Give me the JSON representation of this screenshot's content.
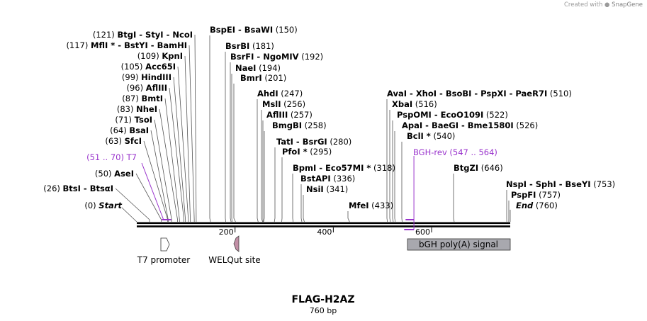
{
  "credit": {
    "prefix": "Created with",
    "brand": "SnapGene"
  },
  "title": "FLAG-H2AZ",
  "subtitle": "760 bp",
  "sequence_length": 760,
  "ticks": [
    {
      "pos": 200,
      "label": "200"
    },
    {
      "pos": 400,
      "label": "400"
    },
    {
      "pos": 600,
      "label": "600"
    }
  ],
  "start_label": {
    "pos_text": "(0)",
    "name": "Start",
    "site": 0
  },
  "end_label": {
    "pos_text": "(760)",
    "name": "End",
    "site": 760
  },
  "left_sites": [
    {
      "pos_text": "(26)",
      "names": [
        "BtsI",
        "BtsαI"
      ],
      "site": 26
    },
    {
      "pos_text": "(50)",
      "names": [
        "AseI"
      ],
      "site": 50
    },
    {
      "pos_text": "(63)",
      "names": [
        "SfcI"
      ],
      "site": 63
    },
    {
      "pos_text": "(64)",
      "names": [
        "BsaI"
      ],
      "site": 64
    },
    {
      "pos_text": "(71)",
      "names": [
        "TsoI"
      ],
      "site": 71
    },
    {
      "pos_text": "(83)",
      "names": [
        "NheI"
      ],
      "site": 83
    },
    {
      "pos_text": "(87)",
      "names": [
        "BmtI"
      ],
      "site": 87
    },
    {
      "pos_text": "(96)",
      "names": [
        "AflIII"
      ],
      "site": 96
    },
    {
      "pos_text": "(99)",
      "names": [
        "HindIII"
      ],
      "site": 99
    },
    {
      "pos_text": "(105)",
      "names": [
        "Acc65I"
      ],
      "site": 105
    },
    {
      "pos_text": "(109)",
      "names": [
        "KpnI"
      ],
      "site": 109
    },
    {
      "pos_text": "(117)",
      "names": [
        "MflI *",
        "BstYI",
        "BamHI"
      ],
      "site": 117
    },
    {
      "pos_text": "(121)",
      "names": [
        "BtgI",
        "StyI",
        "NcoI"
      ],
      "site": 121
    }
  ],
  "mid_sites": [
    {
      "names": [
        "BspEI",
        "BsaWI"
      ],
      "pos_text": "(150)",
      "site": 150
    },
    {
      "names": [
        "BsrBI"
      ],
      "pos_text": "(181)",
      "site": 181
    },
    {
      "names": [
        "BsrFI",
        "NgoMIV"
      ],
      "pos_text": "(192)",
      "site": 192
    },
    {
      "names": [
        "NaeI"
      ],
      "pos_text": "(194)",
      "site": 194
    },
    {
      "names": [
        "BmrI"
      ],
      "pos_text": "(201)",
      "site": 201
    },
    {
      "names": [
        "AhdI"
      ],
      "pos_text": "(247)",
      "site": 247
    },
    {
      "names": [
        "MslI"
      ],
      "pos_text": "(256)",
      "site": 256
    },
    {
      "names": [
        "AflIII"
      ],
      "pos_text": "(257)",
      "site": 257
    },
    {
      "names": [
        "BmgBI"
      ],
      "pos_text": "(258)",
      "site": 258
    },
    {
      "names": [
        "TatI",
        "BsrGI"
      ],
      "pos_text": "(280)",
      "site": 280
    },
    {
      "names": [
        "PfoI *"
      ],
      "pos_text": "(295)",
      "site": 295
    },
    {
      "names": [
        "BpmI",
        "Eco57MI *"
      ],
      "pos_text": "(318)",
      "site": 318
    },
    {
      "names": [
        "BstAPI"
      ],
      "pos_text": "(336)",
      "site": 336
    },
    {
      "names": [
        "NsiI"
      ],
      "pos_text": "(341)",
      "site": 341
    },
    {
      "names": [
        "MfeI"
      ],
      "pos_text": "(433)",
      "site": 433
    },
    {
      "names": [
        "AvaI",
        "XhoI",
        "BsoBI",
        "PspXI",
        "PaeR7I"
      ],
      "pos_text": "(510)",
      "site": 510
    },
    {
      "names": [
        "XbaI"
      ],
      "pos_text": "(516)",
      "site": 516
    },
    {
      "names": [
        "PspOMI",
        "EcoO109I"
      ],
      "pos_text": "(522)",
      "site": 522
    },
    {
      "names": [
        "ApaI",
        "BaeGI",
        "Bme1580I"
      ],
      "pos_text": "(526)",
      "site": 526
    },
    {
      "names": [
        "BclI *"
      ],
      "pos_text": "(540)",
      "site": 540
    },
    {
      "names": [
        "BtgZI"
      ],
      "pos_text": "(646)",
      "site": 646
    },
    {
      "names": [
        "NspI",
        "SphI",
        "BseYI"
      ],
      "pos_text": "(753)",
      "site": 753
    },
    {
      "names": [
        "PspFI"
      ],
      "pos_text": "(757)",
      "site": 757
    }
  ],
  "primers": [
    {
      "name": "T7",
      "range_text": "(51 .. 70)",
      "start": 51,
      "end": 70
    },
    {
      "name": "BGH-rev",
      "range_text": "(547 .. 564)",
      "start": 547,
      "end": 564
    }
  ],
  "features": [
    {
      "name": "T7 promoter",
      "type": "promoter",
      "start": 51,
      "end": 70
    },
    {
      "name": "WELQut site",
      "type": "protease-site",
      "start": 196,
      "end": 207
    },
    {
      "name": "bGH poly(A) signal",
      "type": "polyA_signal",
      "start": 553,
      "end": 777
    }
  ],
  "colors": {
    "backbone": "#000000",
    "primer": "#9933cc",
    "leader": "#555555",
    "promoter_fill": "#ffffff",
    "welqut_fill": "#c28fa6",
    "polyA_fill": "#a8a8ae",
    "text": "#000000"
  }
}
